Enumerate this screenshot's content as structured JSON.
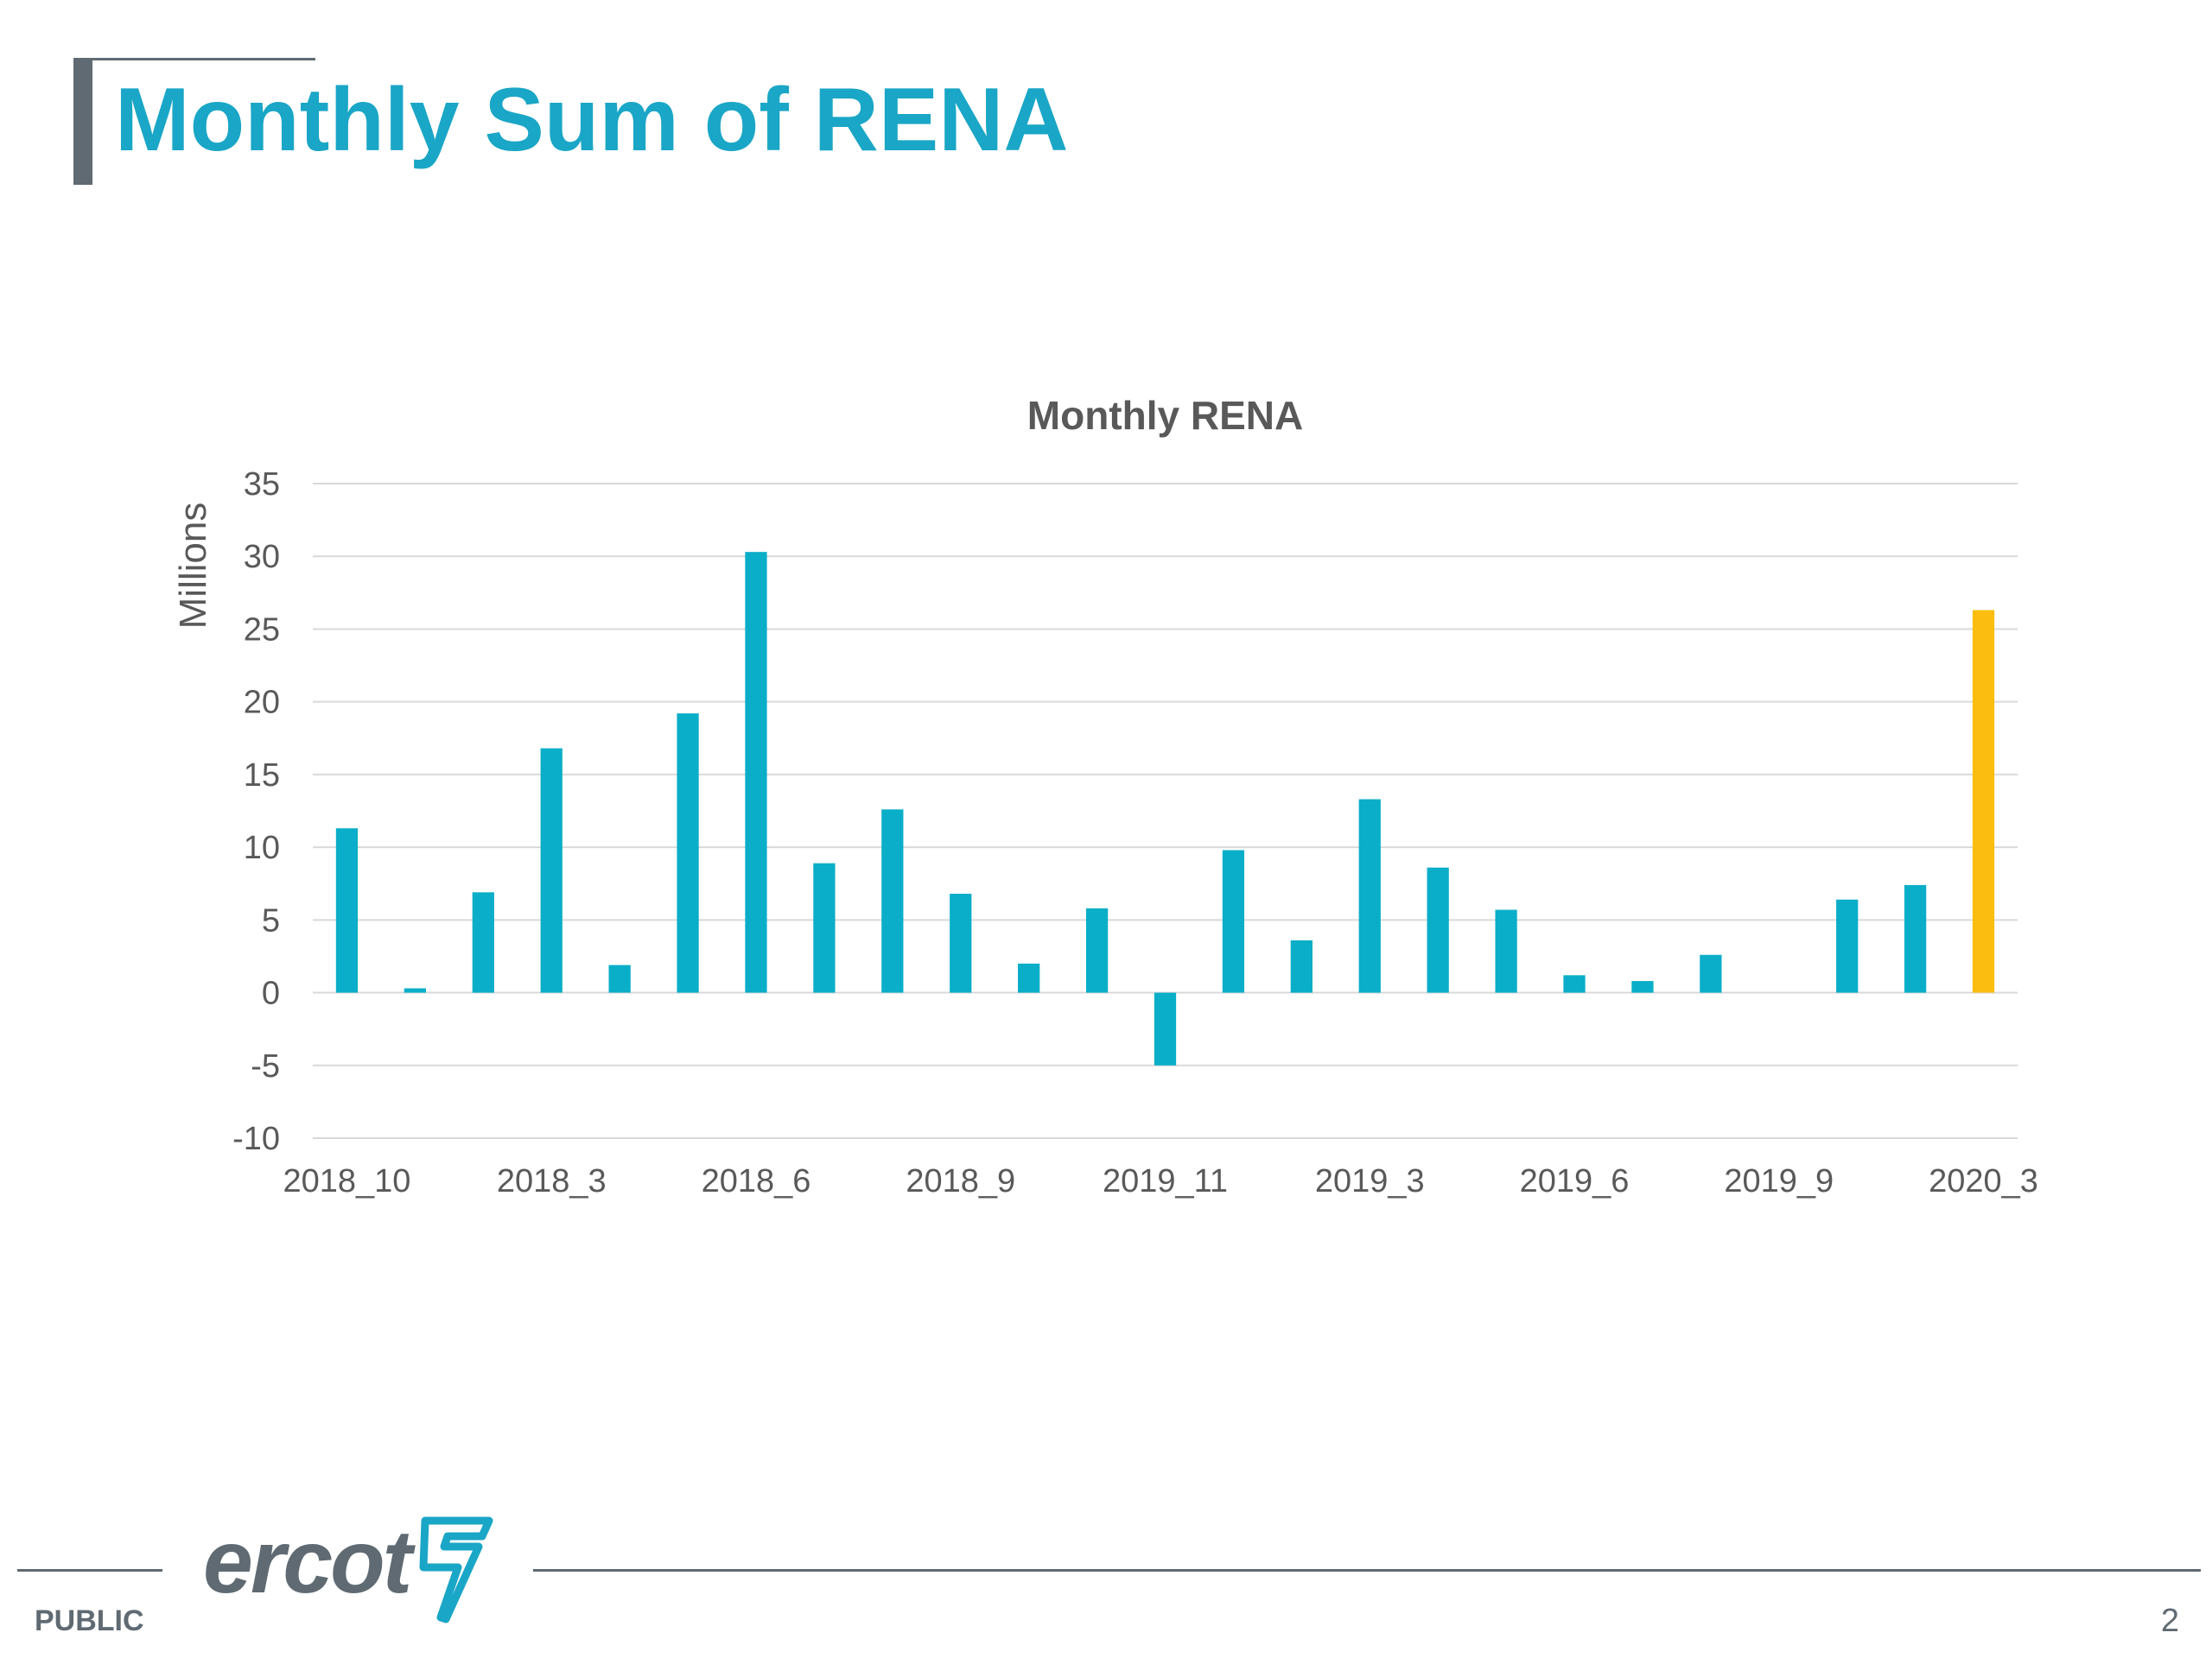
{
  "slide": {
    "title": "Monthly Sum of RENA",
    "classification": "PUBLIC",
    "page_number": "2",
    "logo_text": "ercot",
    "colors": {
      "title": "#1aa6c6",
      "accent_dark": "#5f6a72"
    }
  },
  "chart_data": {
    "type": "bar",
    "title": "Monthly RENA",
    "xlabel": "",
    "ylabel": "Millions",
    "ylim": [
      -10,
      35
    ],
    "yticks": [
      35,
      30,
      25,
      20,
      15,
      10,
      5,
      0,
      -5,
      -10
    ],
    "ytick_labels": [
      "35",
      "30",
      "25",
      "20",
      "15",
      "10",
      "5",
      "0",
      "-5",
      "-10"
    ],
    "grid": true,
    "bar_count": 25,
    "xtick_labels": [
      {
        "index": 0,
        "label": "2018_10"
      },
      {
        "index": 3,
        "label": "2018_3"
      },
      {
        "index": 6,
        "label": "2018_6"
      },
      {
        "index": 9,
        "label": "2018_9"
      },
      {
        "index": 12,
        "label": "2019_11"
      },
      {
        "index": 15,
        "label": "2019_3"
      },
      {
        "index": 18,
        "label": "2019_6"
      },
      {
        "index": 21,
        "label": "2019_9"
      },
      {
        "index": 24,
        "label": "2020_3"
      }
    ],
    "values": [
      11.3,
      0.3,
      6.9,
      16.8,
      1.9,
      19.2,
      30.3,
      8.9,
      12.6,
      6.8,
      2.0,
      5.8,
      -5.0,
      9.8,
      3.6,
      13.3,
      8.6,
      5.7,
      1.2,
      0.8,
      2.6,
      0.0,
      6.4,
      7.4,
      26.3
    ],
    "colors": {
      "default": "#0aaec8",
      "highlight": "#fbbd0f",
      "grid": "#d9d9d9",
      "axis_text": "#595959"
    },
    "highlight_index": 24
  }
}
